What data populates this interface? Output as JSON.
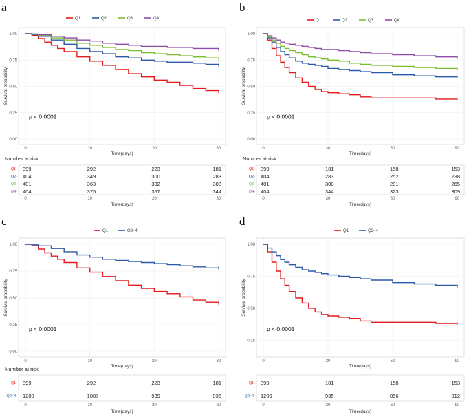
{
  "chart_data": [
    {
      "type": "line",
      "panel_label": "a",
      "legend": [
        "Q1",
        "Q2",
        "Q3",
        "Q4"
      ],
      "xlabel": "Time(days)",
      "ylabel": "Survival probability",
      "xlim": [
        0,
        30
      ],
      "x_ticks": [
        "0",
        "10",
        "20",
        "30"
      ],
      "y_ticks": [
        "0.00",
        "0.25",
        "0.50",
        "0.75",
        "1.00"
      ],
      "ylim": [
        0,
        1
      ],
      "p_value": "p < 0.0001",
      "risk_title": "Number at risk",
      "risk_times": [
        0,
        10,
        20,
        30
      ],
      "series": [
        {
          "name": "Q1",
          "color": "#e41a1c",
          "x": [
            0,
            1,
            2,
            3,
            4,
            5,
            6,
            8,
            10,
            12,
            14,
            16,
            18,
            20,
            22,
            24,
            26,
            28,
            30
          ],
          "y": [
            1.0,
            0.985,
            0.955,
            0.92,
            0.89,
            0.86,
            0.83,
            0.78,
            0.74,
            0.7,
            0.66,
            0.62,
            0.59,
            0.56,
            0.54,
            0.51,
            0.48,
            0.46,
            0.45
          ],
          "risk": [
            "399",
            "292",
            "223",
            "181"
          ]
        },
        {
          "name": "Q2",
          "color": "#2c5aa8",
          "x": [
            0,
            1,
            2,
            4,
            6,
            8,
            10,
            12,
            14,
            16,
            18,
            20,
            22,
            24,
            26,
            28,
            30
          ],
          "y": [
            1.0,
            0.99,
            0.975,
            0.94,
            0.9,
            0.86,
            0.83,
            0.81,
            0.78,
            0.77,
            0.75,
            0.74,
            0.73,
            0.73,
            0.72,
            0.71,
            0.7
          ],
          "risk": [
            "404",
            "349",
            "300",
            "283"
          ]
        },
        {
          "name": "Q3",
          "color": "#7cbd2e",
          "x": [
            0,
            1,
            2,
            4,
            6,
            8,
            10,
            12,
            14,
            16,
            18,
            20,
            22,
            24,
            26,
            28,
            30
          ],
          "y": [
            1.0,
            0.995,
            0.985,
            0.96,
            0.94,
            0.91,
            0.89,
            0.87,
            0.85,
            0.84,
            0.82,
            0.81,
            0.8,
            0.79,
            0.78,
            0.77,
            0.76
          ],
          "risk": [
            "401",
            "363",
            "332",
            "308"
          ]
        },
        {
          "name": "Q4",
          "color": "#8e4ca7",
          "x": [
            0,
            1,
            2,
            4,
            6,
            8,
            10,
            12,
            14,
            16,
            18,
            20,
            22,
            24,
            26,
            28,
            30
          ],
          "y": [
            1.0,
            0.997,
            0.99,
            0.975,
            0.96,
            0.94,
            0.93,
            0.91,
            0.9,
            0.89,
            0.88,
            0.88,
            0.87,
            0.87,
            0.86,
            0.86,
            0.85
          ],
          "risk": [
            "404",
            "375",
            "357",
            "344"
          ]
        }
      ]
    },
    {
      "type": "line",
      "panel_label": "b",
      "legend": [
        "Q1",
        "Q2",
        "Q3",
        "Q4"
      ],
      "xlabel": "Time(days)",
      "ylabel": "Survival probability",
      "xlim": [
        0,
        90
      ],
      "x_ticks": [
        "0",
        "30",
        "60",
        "90"
      ],
      "y_ticks": [
        "0.00",
        "0.25",
        "0.50",
        "0.75",
        "1.00"
      ],
      "ylim": [
        0,
        1
      ],
      "p_value": "p < 0.0001",
      "risk_title": "Number at risk",
      "risk_times": [
        0,
        30,
        60,
        90
      ],
      "series": [
        {
          "name": "Q1",
          "color": "#e41a1c",
          "x": [
            0,
            2,
            4,
            6,
            8,
            10,
            12,
            15,
            18,
            21,
            24,
            27,
            30,
            35,
            40,
            45,
            50,
            60,
            70,
            80,
            90
          ],
          "y": [
            1.0,
            0.94,
            0.86,
            0.79,
            0.73,
            0.68,
            0.63,
            0.58,
            0.54,
            0.5,
            0.47,
            0.45,
            0.44,
            0.43,
            0.42,
            0.4,
            0.39,
            0.39,
            0.39,
            0.38,
            0.38
          ],
          "risk": [
            "399",
            "181",
            "158",
            "153"
          ]
        },
        {
          "name": "Q2",
          "color": "#2c5aa8",
          "x": [
            0,
            2,
            4,
            6,
            8,
            10,
            12,
            15,
            18,
            21,
            24,
            27,
            30,
            35,
            40,
            45,
            50,
            60,
            70,
            80,
            90
          ],
          "y": [
            1.0,
            0.96,
            0.92,
            0.87,
            0.83,
            0.8,
            0.77,
            0.74,
            0.72,
            0.71,
            0.7,
            0.69,
            0.67,
            0.66,
            0.65,
            0.64,
            0.63,
            0.61,
            0.6,
            0.59,
            0.59
          ],
          "risk": [
            "404",
            "283",
            "252",
            "238"
          ]
        },
        {
          "name": "Q3",
          "color": "#7cbd2e",
          "x": [
            0,
            2,
            4,
            6,
            8,
            10,
            12,
            15,
            18,
            21,
            24,
            27,
            30,
            35,
            40,
            45,
            50,
            60,
            70,
            80,
            90
          ],
          "y": [
            1.0,
            0.97,
            0.94,
            0.91,
            0.88,
            0.86,
            0.84,
            0.82,
            0.8,
            0.78,
            0.77,
            0.76,
            0.75,
            0.74,
            0.72,
            0.71,
            0.7,
            0.69,
            0.68,
            0.67,
            0.66
          ],
          "risk": [
            "401",
            "308",
            "281",
            "265"
          ]
        },
        {
          "name": "Q4",
          "color": "#8e4ca7",
          "x": [
            0,
            2,
            4,
            6,
            8,
            10,
            12,
            15,
            18,
            21,
            24,
            27,
            30,
            35,
            40,
            45,
            50,
            60,
            70,
            80,
            90
          ],
          "y": [
            1.0,
            0.98,
            0.96,
            0.94,
            0.92,
            0.91,
            0.9,
            0.89,
            0.88,
            0.87,
            0.86,
            0.85,
            0.85,
            0.84,
            0.83,
            0.82,
            0.81,
            0.8,
            0.79,
            0.78,
            0.77
          ],
          "risk": [
            "404",
            "344",
            "323",
            "309"
          ]
        }
      ]
    },
    {
      "type": "line",
      "panel_label": "c",
      "legend": [
        "Q1",
        "Q2~4"
      ],
      "xlabel": "Time(days)",
      "ylabel": "Survival probability",
      "xlim": [
        0,
        30
      ],
      "x_ticks": [
        "0",
        "10",
        "20",
        "30"
      ],
      "y_ticks": [
        "0.00",
        "0.25",
        "0.50",
        "0.75",
        "1.00"
      ],
      "ylim": [
        0,
        1
      ],
      "p_value": "p < 0.0001",
      "risk_title": "Number at risk",
      "risk_times": [
        0,
        10,
        20,
        30
      ],
      "series": [
        {
          "name": "Q1",
          "color": "#e41a1c",
          "x": [
            0,
            1,
            2,
            3,
            4,
            5,
            6,
            8,
            10,
            12,
            14,
            16,
            18,
            20,
            22,
            24,
            26,
            28,
            30
          ],
          "y": [
            1.0,
            0.985,
            0.955,
            0.92,
            0.89,
            0.86,
            0.83,
            0.78,
            0.74,
            0.7,
            0.66,
            0.62,
            0.59,
            0.56,
            0.54,
            0.51,
            0.48,
            0.46,
            0.45
          ],
          "risk": [
            "399",
            "292",
            "223",
            "181"
          ]
        },
        {
          "name": "Q2~4",
          "color": "#2c5aa8",
          "x": [
            0,
            1,
            2,
            4,
            6,
            8,
            10,
            12,
            14,
            16,
            18,
            20,
            22,
            24,
            26,
            28,
            30
          ],
          "y": [
            1.0,
            0.995,
            0.985,
            0.96,
            0.93,
            0.9,
            0.88,
            0.86,
            0.85,
            0.84,
            0.83,
            0.82,
            0.81,
            0.8,
            0.79,
            0.78,
            0.78
          ],
          "risk": [
            "1209",
            "1087",
            "989",
            "935"
          ]
        }
      ]
    },
    {
      "type": "line",
      "panel_label": "d",
      "legend": [
        "Q1",
        "Q2~4"
      ],
      "xlabel": "Time(days)",
      "ylabel": "Survival probability",
      "xlim": [
        0,
        90
      ],
      "x_ticks": [
        "0",
        "30",
        "60",
        "90"
      ],
      "y_ticks": [
        "0.25",
        "0.50",
        "0.75",
        "1.00"
      ],
      "ylim": [
        0.16,
        1
      ],
      "p_value": "p < 0.0001",
      "risk_title": "",
      "risk_times": [
        0,
        30,
        60,
        90
      ],
      "series": [
        {
          "name": "Q1",
          "color": "#e41a1c",
          "x": [
            0,
            2,
            4,
            6,
            8,
            10,
            12,
            15,
            18,
            21,
            24,
            27,
            30,
            35,
            40,
            45,
            50,
            60,
            70,
            80,
            90
          ],
          "y": [
            1.0,
            0.94,
            0.86,
            0.79,
            0.73,
            0.68,
            0.63,
            0.58,
            0.54,
            0.5,
            0.47,
            0.45,
            0.44,
            0.43,
            0.42,
            0.4,
            0.39,
            0.39,
            0.39,
            0.38,
            0.38
          ],
          "risk": [
            "399",
            "181",
            "158",
            "153"
          ]
        },
        {
          "name": "Q2~4",
          "color": "#2c5aa8",
          "x": [
            0,
            2,
            4,
            6,
            8,
            10,
            12,
            15,
            18,
            21,
            24,
            27,
            30,
            35,
            40,
            45,
            50,
            60,
            70,
            80,
            90
          ],
          "y": [
            1.0,
            0.97,
            0.94,
            0.91,
            0.88,
            0.86,
            0.84,
            0.82,
            0.8,
            0.79,
            0.78,
            0.77,
            0.76,
            0.75,
            0.74,
            0.73,
            0.72,
            0.7,
            0.69,
            0.68,
            0.67
          ],
          "risk": [
            "1209",
            "935",
            "856",
            "812"
          ]
        }
      ]
    }
  ]
}
